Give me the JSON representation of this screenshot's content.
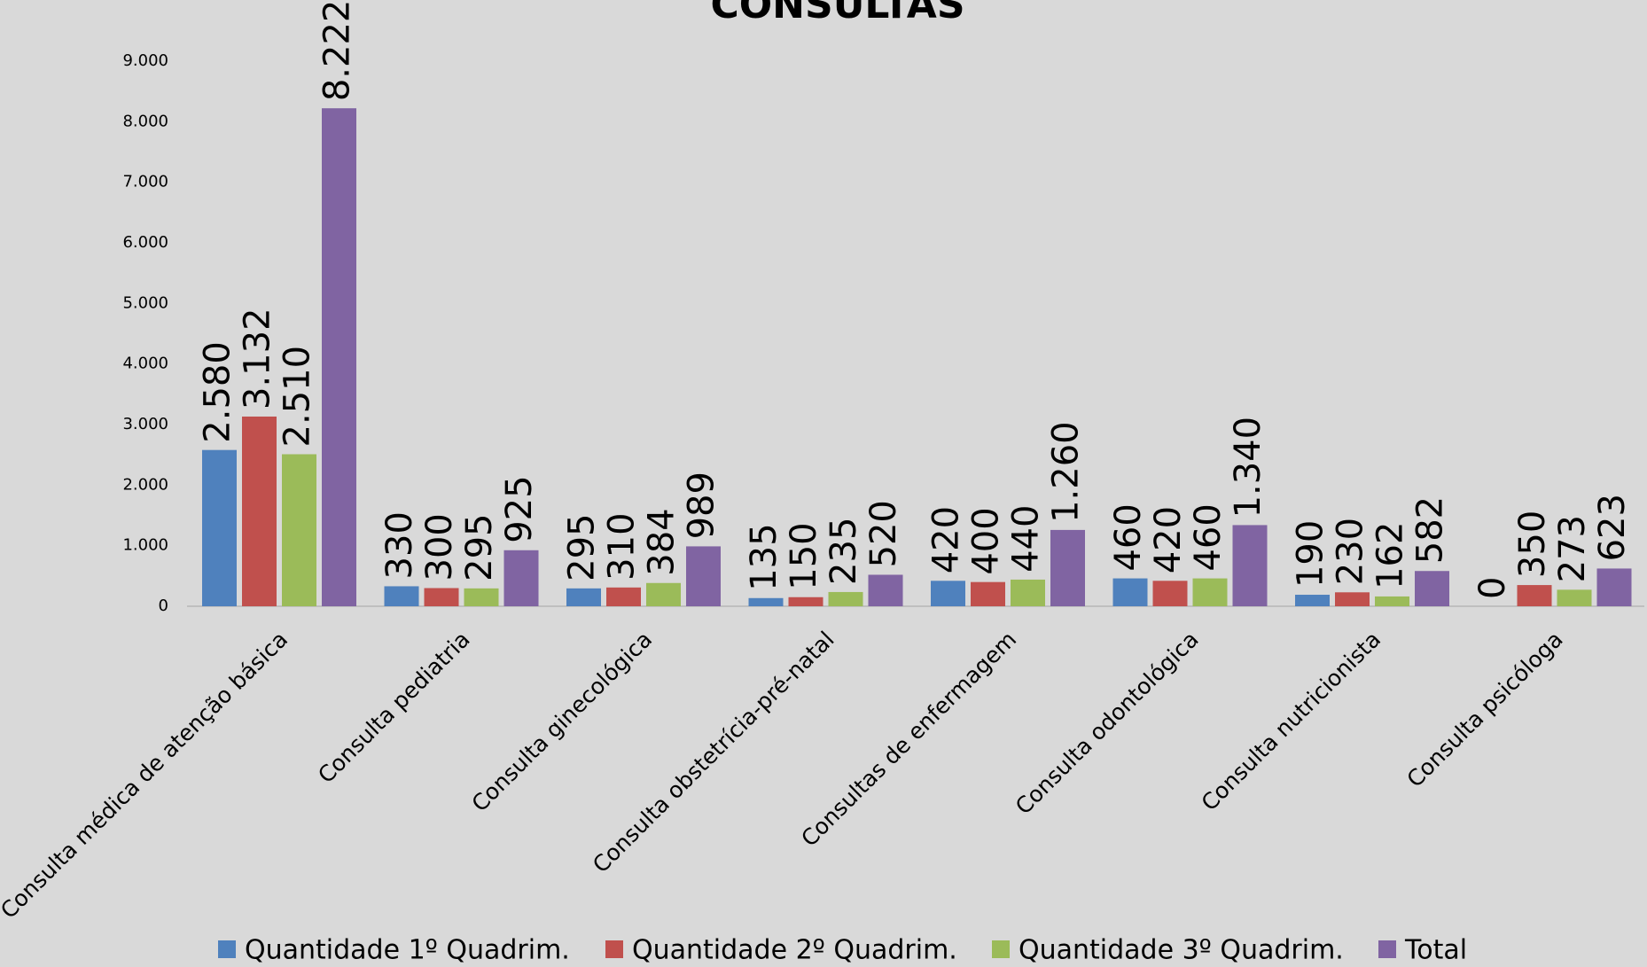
{
  "chart_data": {
    "type": "bar",
    "title": "CONSULTAS",
    "categories": [
      "Consulta médica de atenção básica",
      "Consulta pediatria",
      "Consulta ginecológica",
      "Consulta obstetrícia-pré-natal",
      "Consultas de enfermagem",
      "Consulta odontológica",
      "Consulta nutricionista",
      "Consulta psicóloga"
    ],
    "series": [
      {
        "name": "Quantidade 1º Quadrim.",
        "color": "#4f81bd",
        "values": [
          2580,
          330,
          295,
          135,
          420,
          460,
          190,
          0
        ],
        "value_labels": [
          "2.580",
          "330",
          "295",
          "135",
          "420",
          "460",
          "190",
          "0"
        ]
      },
      {
        "name": "Quantidade 2º Quadrim.",
        "color": "#c0504d",
        "values": [
          3132,
          300,
          310,
          150,
          400,
          420,
          230,
          350
        ],
        "value_labels": [
          "3.132",
          "300",
          "310",
          "150",
          "400",
          "420",
          "230",
          "350"
        ]
      },
      {
        "name": "Quantidade 3º Quadrim.",
        "color": "#9bbb59",
        "values": [
          2510,
          295,
          384,
          235,
          440,
          460,
          162,
          273
        ],
        "value_labels": [
          "2.510",
          "295",
          "384",
          "235",
          "440",
          "460",
          "162",
          "273"
        ]
      },
      {
        "name": "Total",
        "color": "#8064a2",
        "values": [
          8222,
          925,
          989,
          520,
          1260,
          1340,
          582,
          623
        ],
        "value_labels": [
          "8.222",
          "925",
          "989",
          "520",
          "1.260",
          "1.340",
          "582",
          "623"
        ]
      }
    ],
    "ylim": [
      0,
      9000
    ],
    "yticks": [
      0,
      {
        "value": 1000,
        "label": "1.000"
      },
      {
        "value": 2000,
        "label": "2.000"
      },
      {
        "value": 3000,
        "label": "3.000"
      },
      {
        "value": 4000,
        "label": "4.000"
      },
      {
        "value": 5000,
        "label": "5.000"
      },
      {
        "value": 6000,
        "label": "6.000"
      },
      {
        "value": 7000,
        "label": "7.000"
      },
      {
        "value": 8000,
        "label": "8.000"
      },
      {
        "value": 9000,
        "label": "9.000"
      }
    ],
    "legend": "bottom"
  }
}
